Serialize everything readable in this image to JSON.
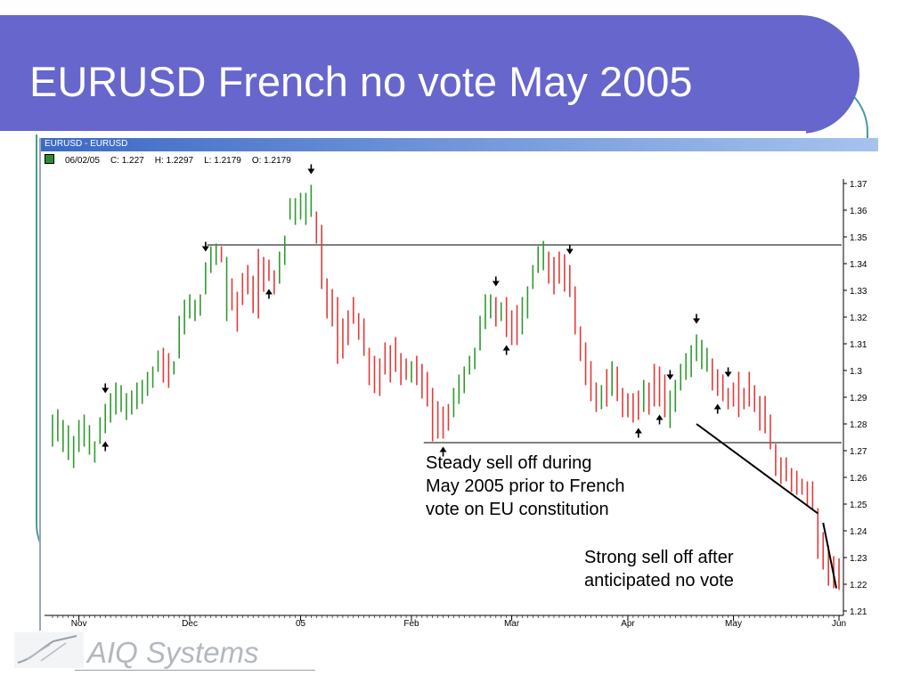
{
  "slide": {
    "title": "EURUSD French no vote May 2005"
  },
  "window": {
    "title": "EURUSD - EURUSD",
    "info": {
      "date": "06/02/05",
      "close": "C: 1.227",
      "high": "H: 1.2297",
      "low": "L: 1.2179",
      "open": "O: 1.2179"
    }
  },
  "logo": {
    "text": "AIQ Systems"
  },
  "colors": {
    "title_banner": "#6666cc",
    "up_bar": "#2e9a2e",
    "down_bar": "#e23a3a",
    "teal_accent": "#4a9a9a",
    "window_titlebar": "#3d69c4"
  },
  "annotations": {
    "steady": [
      "Steady sell off during",
      "May 2005 prior to French",
      "vote on EU constitution"
    ],
    "strong": [
      "Strong sell off after",
      "anticipated no vote"
    ]
  },
  "chart_data": {
    "type": "bar",
    "subtype": "ohlc-hlc",
    "ylim": [
      1.21,
      1.37
    ],
    "y_ticks": [
      "1.37",
      "1.36",
      "1.35",
      "1.34",
      "1.33",
      "1.32",
      "1.31",
      "1.3",
      "1.29",
      "1.28",
      "1.27",
      "1.26",
      "1.25",
      "1.24",
      "1.23",
      "1.22",
      "1.21"
    ],
    "x_ticks": [
      {
        "label": "Nov",
        "bar": 5
      },
      {
        "label": "Dec",
        "bar": 26
      },
      {
        "label": "05",
        "bar": 47
      },
      {
        "label": "Feb",
        "bar": 68
      },
      {
        "label": "Mar",
        "bar": 87
      },
      {
        "label": "Apr",
        "bar": 109
      },
      {
        "label": "May",
        "bar": 129
      },
      {
        "label": "Jun",
        "bar": 149
      }
    ],
    "bar_count": 150,
    "bars": [
      [
        1.2835,
        1.2715,
        1
      ],
      [
        1.2855,
        1.2735,
        1
      ],
      [
        1.2815,
        1.2695,
        1
      ],
      [
        1.2795,
        1.2665,
        1
      ],
      [
        1.2755,
        1.2635,
        1
      ],
      [
        1.2815,
        1.2695,
        1
      ],
      [
        1.2835,
        1.2715,
        1
      ],
      [
        1.2795,
        1.2685,
        1
      ],
      [
        1.2735,
        1.2655,
        1
      ],
      [
        1.2825,
        1.2725,
        1
      ],
      [
        1.2875,
        1.2765,
        1
      ],
      [
        1.2915,
        1.2805,
        1
      ],
      [
        1.2955,
        1.2835,
        1
      ],
      [
        1.2945,
        1.2845,
        1
      ],
      [
        1.2915,
        1.2815,
        1
      ],
      [
        1.2925,
        1.2835,
        1
      ],
      [
        1.2955,
        1.2855,
        1
      ],
      [
        1.2965,
        1.2875,
        1
      ],
      [
        1.2995,
        1.2905,
        1
      ],
      [
        1.3015,
        1.2935,
        1
      ],
      [
        1.3075,
        1.2995,
        1
      ],
      [
        1.3085,
        1.2955,
        0
      ],
      [
        1.3065,
        1.2935,
        0
      ],
      [
        1.3035,
        1.2985,
        1
      ],
      [
        1.3205,
        1.3045,
        1
      ],
      [
        1.3265,
        1.3135,
        1
      ],
      [
        1.3285,
        1.3195,
        1
      ],
      [
        1.3265,
        1.3185,
        1
      ],
      [
        1.3285,
        1.3205,
        1
      ],
      [
        1.3405,
        1.3285,
        1
      ],
      [
        1.3465,
        1.3365,
        1
      ],
      [
        1.3475,
        1.3395,
        1
      ],
      [
        1.3465,
        1.3405,
        0
      ],
      [
        1.3425,
        1.3185,
        1
      ],
      [
        1.3345,
        1.3225,
        0
      ],
      [
        1.3295,
        1.3145,
        0
      ],
      [
        1.3365,
        1.3245,
        0
      ],
      [
        1.3395,
        1.3285,
        0
      ],
      [
        1.3355,
        1.3215,
        0
      ],
      [
        1.3455,
        1.3195,
        0
      ],
      [
        1.3425,
        1.3295,
        0
      ],
      [
        1.3415,
        1.3335,
        0
      ],
      [
        1.3375,
        1.3285,
        0
      ],
      [
        1.3445,
        1.3325,
        1
      ],
      [
        1.3505,
        1.3395,
        1
      ],
      [
        1.3645,
        1.3565,
        1
      ],
      [
        1.3645,
        1.3545,
        1
      ],
      [
        1.3665,
        1.3565,
        1
      ],
      [
        1.3665,
        1.3545,
        1
      ],
      [
        1.3695,
        1.3575,
        1
      ],
      [
        1.3595,
        1.3475,
        0
      ],
      [
        1.3545,
        1.3305,
        0
      ],
      [
        1.3345,
        1.3195,
        0
      ],
      [
        1.3305,
        1.3165,
        0
      ],
      [
        1.3275,
        1.3025,
        0
      ],
      [
        1.3195,
        1.3045,
        0
      ],
      [
        1.3225,
        1.3095,
        0
      ],
      [
        1.3275,
        1.3175,
        0
      ],
      [
        1.3215,
        1.3115,
        0
      ],
      [
        1.3195,
        1.3055,
        0
      ],
      [
        1.3085,
        1.2945,
        0
      ],
      [
        1.3055,
        1.2915,
        0
      ],
      [
        1.3045,
        1.2905,
        0
      ],
      [
        1.3105,
        1.2985,
        0
      ],
      [
        1.3095,
        1.2955,
        0
      ],
      [
        1.3125,
        1.2995,
        0
      ],
      [
        1.3065,
        1.2945,
        0
      ],
      [
        1.3045,
        1.2965,
        0
      ],
      [
        1.3035,
        1.2955,
        1
      ],
      [
        1.3055,
        1.2945,
        0
      ],
      [
        1.3025,
        1.2895,
        0
      ],
      [
        1.2995,
        1.2865,
        0
      ],
      [
        1.2935,
        1.2735,
        0
      ],
      [
        1.2885,
        1.2745,
        0
      ],
      [
        1.2865,
        1.2745,
        0
      ],
      [
        1.2875,
        1.2775,
        0
      ],
      [
        1.2935,
        1.2825,
        1
      ],
      [
        1.2985,
        1.2875,
        1
      ],
      [
        1.3015,
        1.2915,
        1
      ],
      [
        1.3055,
        1.2985,
        1
      ],
      [
        1.3085,
        1.3005,
        1
      ],
      [
        1.3205,
        1.3075,
        1
      ],
      [
        1.3285,
        1.3155,
        1
      ],
      [
        1.3285,
        1.3195,
        1
      ],
      [
        1.3275,
        1.3165,
        0
      ],
      [
        1.3255,
        1.3185,
        1
      ],
      [
        1.3275,
        1.3125,
        0
      ],
      [
        1.3225,
        1.3095,
        0
      ],
      [
        1.3245,
        1.3095,
        0
      ],
      [
        1.3275,
        1.3135,
        1
      ],
      [
        1.3315,
        1.3195,
        1
      ],
      [
        1.3395,
        1.3305,
        1
      ],
      [
        1.3465,
        1.3365,
        1
      ],
      [
        1.3485,
        1.3375,
        1
      ],
      [
        1.3445,
        1.3325,
        0
      ],
      [
        1.3425,
        1.3285,
        0
      ],
      [
        1.3445,
        1.3325,
        0
      ],
      [
        1.3435,
        1.3295,
        0
      ],
      [
        1.3395,
        1.3275,
        0
      ],
      [
        1.3315,
        1.3135,
        0
      ],
      [
        1.3165,
        1.3035,
        0
      ],
      [
        1.3105,
        1.2945,
        0
      ],
      [
        1.3035,
        1.2885,
        0
      ],
      [
        1.2955,
        1.2845,
        0
      ],
      [
        1.2945,
        1.2855,
        1
      ],
      [
        1.3005,
        1.2865,
        0
      ],
      [
        1.3035,
        1.2905,
        1
      ],
      [
        1.3015,
        1.2885,
        0
      ],
      [
        1.2935,
        1.2825,
        0
      ],
      [
        1.2915,
        1.2825,
        0
      ],
      [
        1.2915,
        1.2805,
        0
      ],
      [
        1.2925,
        1.2815,
        0
      ],
      [
        1.2965,
        1.2845,
        1
      ],
      [
        1.2955,
        1.2835,
        0
      ],
      [
        1.3025,
        1.2865,
        0
      ],
      [
        1.3015,
        1.2865,
        0
      ],
      [
        1.2985,
        1.2825,
        0
      ],
      [
        1.2925,
        1.2785,
        1
      ],
      [
        1.2965,
        1.2845,
        1
      ],
      [
        1.3025,
        1.2925,
        1
      ],
      [
        1.3065,
        1.2965,
        1
      ],
      [
        1.3095,
        1.2975,
        1
      ],
      [
        1.3135,
        1.3035,
        1
      ],
      [
        1.3115,
        1.3005,
        1
      ],
      [
        1.3085,
        1.2995,
        1
      ],
      [
        1.3045,
        1.2925,
        0
      ],
      [
        1.3005,
        1.2905,
        0
      ],
      [
        1.2985,
        1.2885,
        0
      ],
      [
        1.2935,
        1.2855,
        0
      ],
      [
        1.2955,
        1.2865,
        0
      ],
      [
        1.2995,
        1.2825,
        0
      ],
      [
        1.2935,
        1.2855,
        0
      ],
      [
        1.2995,
        1.2865,
        0
      ],
      [
        1.2945,
        1.2845,
        0
      ],
      [
        1.2905,
        1.2775,
        0
      ],
      [
        1.2905,
        1.2765,
        0
      ],
      [
        1.2835,
        1.2705,
        0
      ],
      [
        1.2725,
        1.2605,
        0
      ],
      [
        1.2675,
        1.2575,
        0
      ],
      [
        1.2675,
        1.2585,
        0
      ],
      [
        1.2635,
        1.2545,
        0
      ],
      [
        1.2625,
        1.2535,
        0
      ],
      [
        1.2595,
        1.2535,
        0
      ],
      [
        1.2585,
        1.2495,
        0
      ],
      [
        1.2585,
        1.2475,
        0
      ],
      [
        1.2485,
        1.2295,
        0
      ],
      [
        1.2395,
        1.2255,
        0
      ],
      [
        1.2345,
        1.2195,
        0
      ],
      [
        1.2305,
        1.2185,
        0
      ],
      [
        1.2297,
        1.2179,
        0
      ]
    ],
    "resistance": 1.347,
    "support": 1.273,
    "down_arrow_bars": [
      10,
      29,
      49,
      84,
      98,
      117,
      122,
      128
    ],
    "up_arrow_bars": [
      10,
      41,
      74,
      86,
      111,
      115,
      126
    ]
  }
}
